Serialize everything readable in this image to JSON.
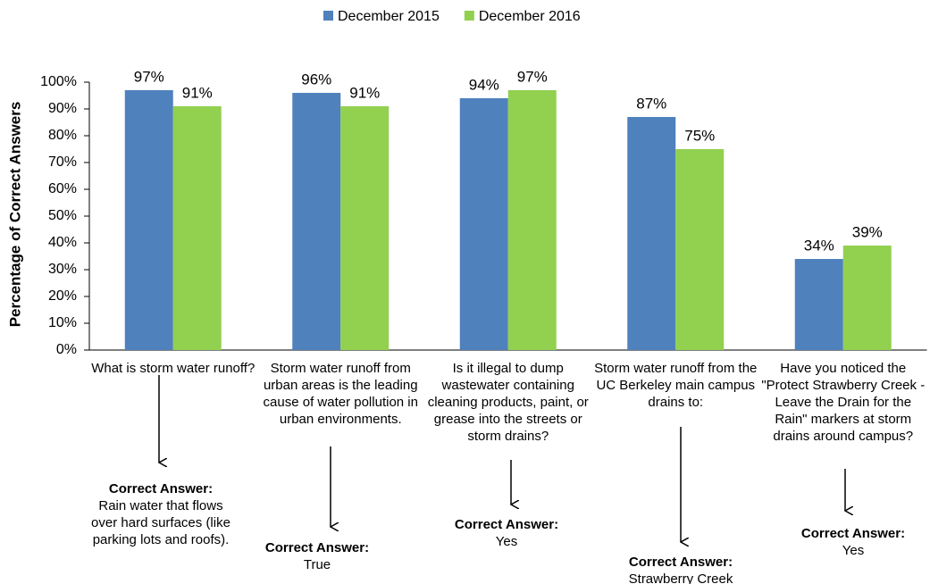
{
  "chart_data": {
    "type": "bar",
    "y_label": "Percentage of Correct Answers",
    "categories": [
      "What is storm water runoff?",
      "Storm water runoff from urban areas is the leading cause of water pollution in urban environments.",
      "Is it illegal to dump wastewater containing cleaning products, paint, or grease into the streets or storm drains?",
      "Storm water runoff from the UC Berkeley main campus drains to:",
      "Have you noticed the \"Protect Strawberry Creek - Leave the Drain for the Rain\" markers at storm drains around campus?"
    ],
    "series": [
      {
        "name": "December 2015",
        "color": "#4f81bd",
        "values": [
          97,
          96,
          94,
          87,
          34
        ],
        "value_labels": [
          "97%",
          "96%",
          "94%",
          "87%",
          "34%"
        ]
      },
      {
        "name": "December 2016",
        "color": "#92d050",
        "values": [
          91,
          91,
          97,
          75,
          39
        ],
        "value_labels": [
          "91%",
          "91%",
          "97%",
          "75%",
          "39%"
        ]
      }
    ],
    "ylim": [
      0,
      100
    ],
    "yticks": [
      {
        "value": 0,
        "label": "0%"
      },
      {
        "value": 10,
        "label": "10%"
      },
      {
        "value": 20,
        "label": "20%"
      },
      {
        "value": 30,
        "label": "30%"
      },
      {
        "value": 40,
        "label": "40%"
      },
      {
        "value": 50,
        "label": "50%"
      },
      {
        "value": 60,
        "label": "60%"
      },
      {
        "value": 70,
        "label": "70%"
      },
      {
        "value": 80,
        "label": "80%"
      },
      {
        "value": 90,
        "label": "90%"
      },
      {
        "value": 100,
        "label": "100%"
      }
    ],
    "legend": "top",
    "annotations": [
      {
        "label": "Correct Answer:",
        "text": "Rain water that flows over hard surfaces (like parking lots and roofs)."
      },
      {
        "label": "Correct Answer:",
        "text": "True"
      },
      {
        "label": "Correct Answer:",
        "text": "Yes"
      },
      {
        "label": "Correct Answer:",
        "text": "Strawberry Creek"
      },
      {
        "label": "Correct Answer:",
        "text": "Yes"
      }
    ]
  }
}
